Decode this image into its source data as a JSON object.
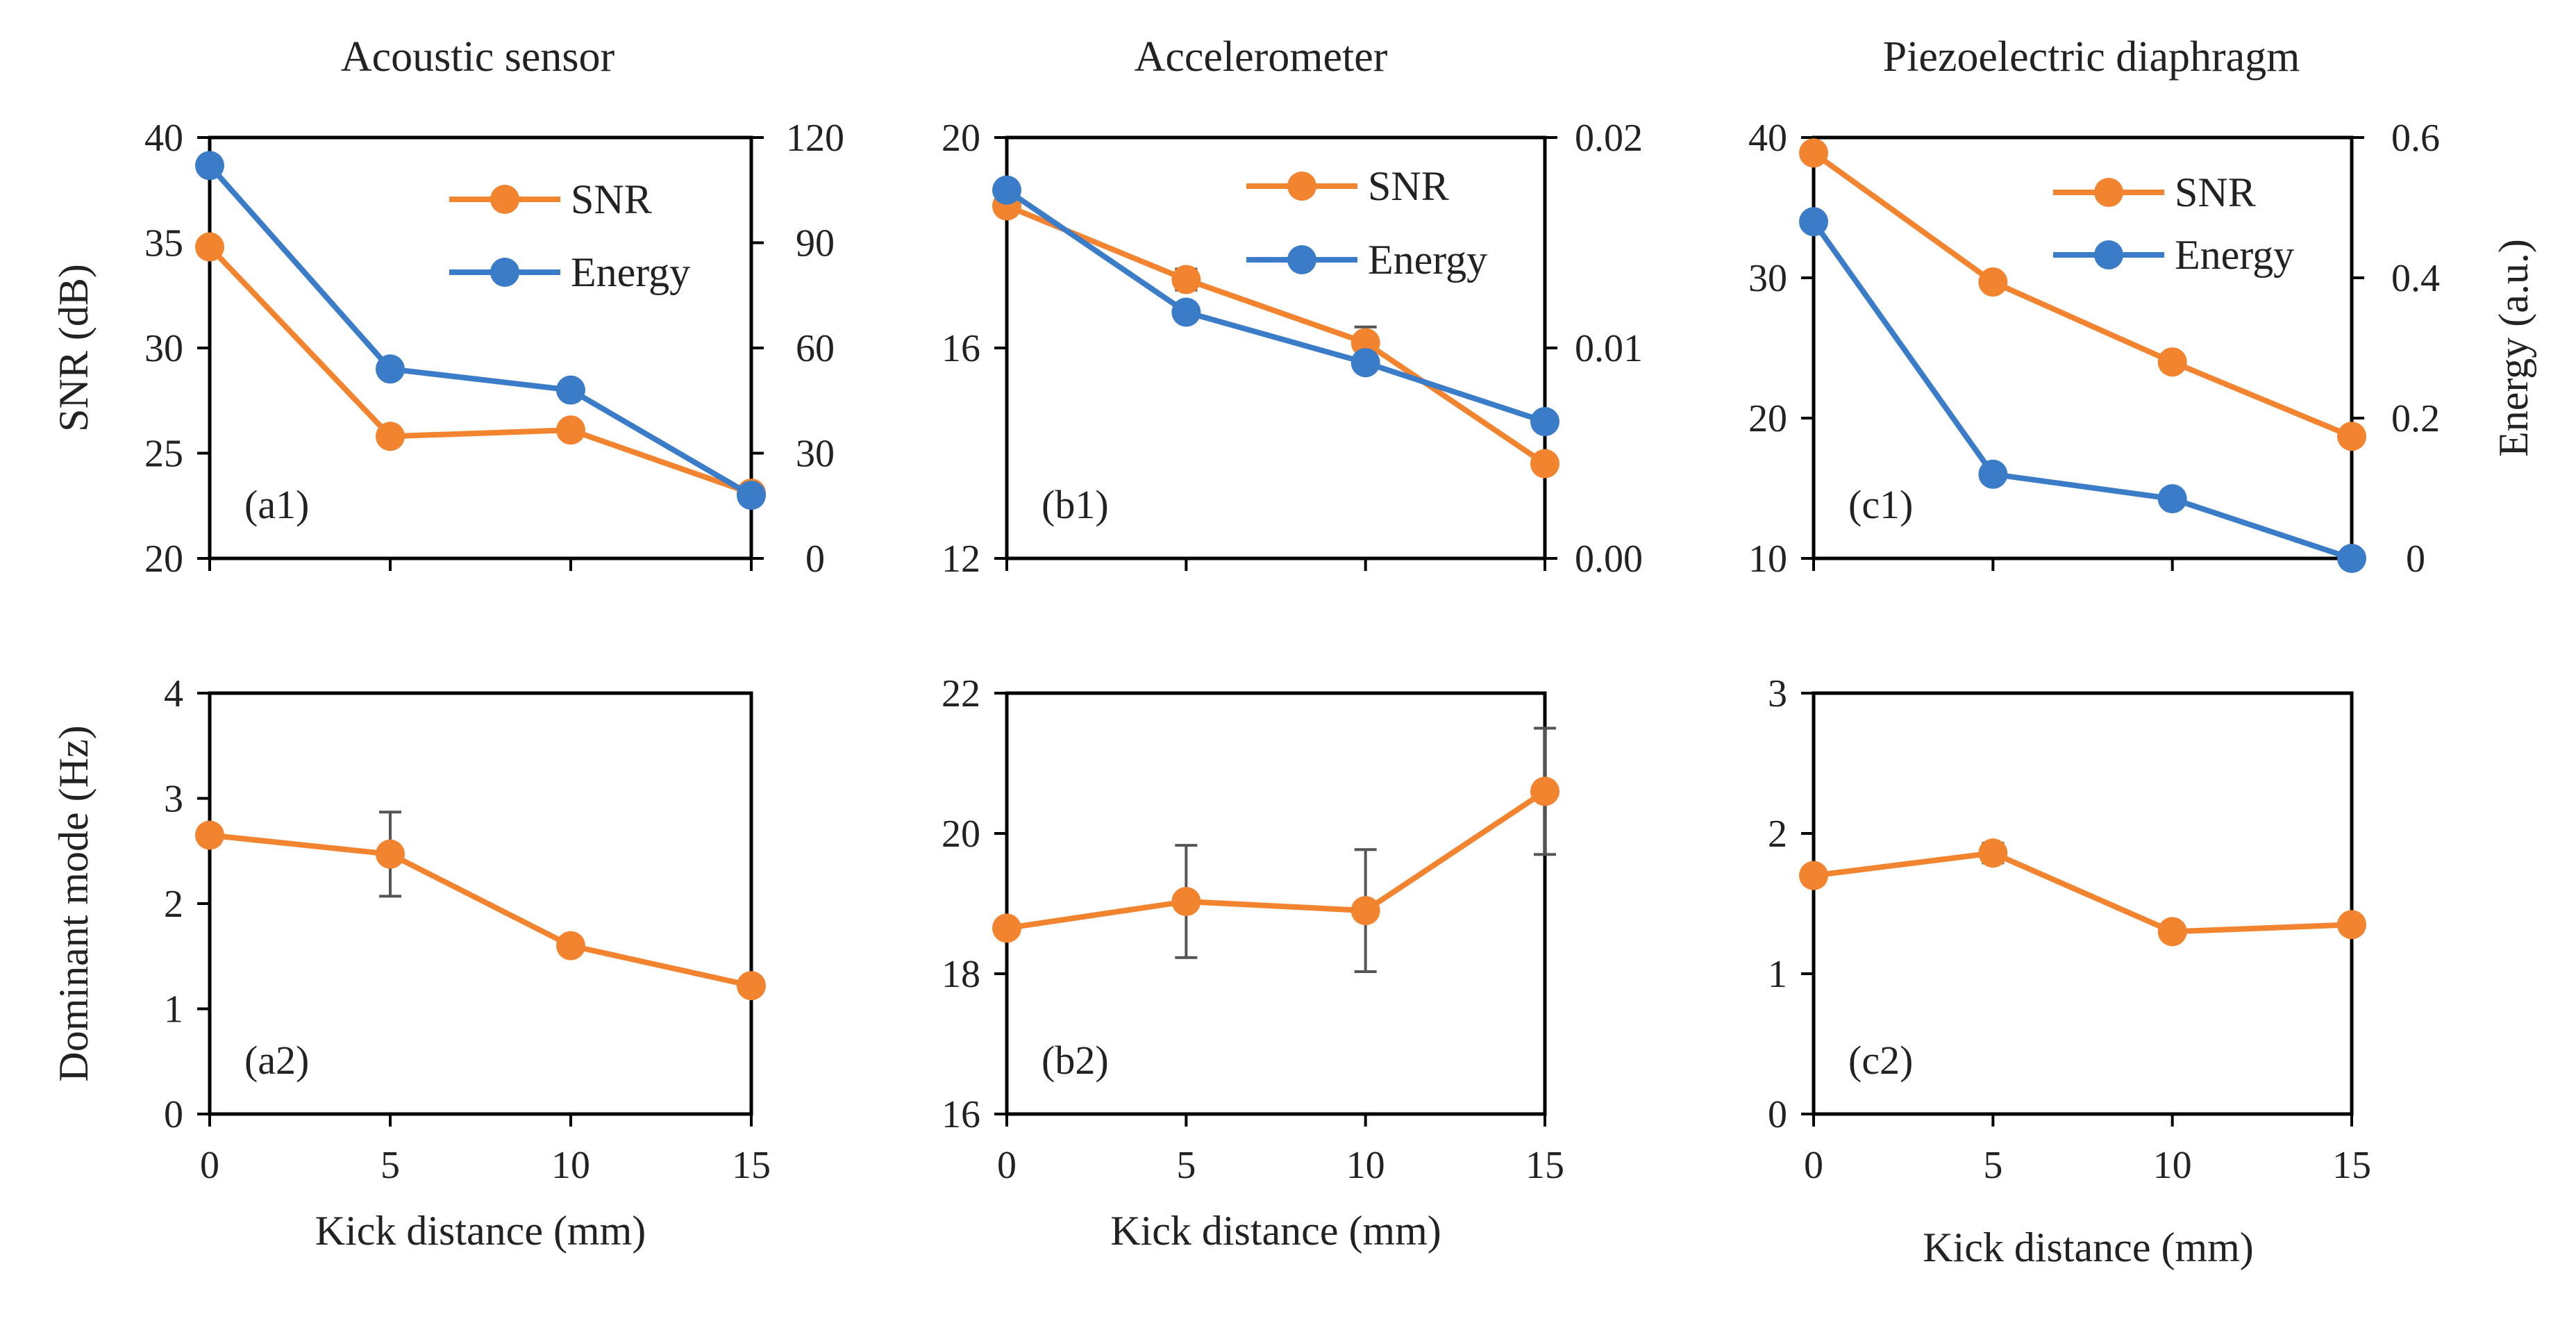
{
  "colors": {
    "snr": "#F28430",
    "energy": "#3A7CC8",
    "axis": "#000000",
    "errorbar": "#555555"
  },
  "column_titles": [
    "Acoustic sensor",
    "Accelerometer",
    "Piezoelectric diaphragm"
  ],
  "shared_labels": {
    "left_top": "SNR (dB)",
    "left_bottom": "Dominant  mode (Hz)",
    "right_top": "Energy  (a.u.)",
    "x_axis": "Kick distance (mm)"
  },
  "chart_data": [
    {
      "id": "a1",
      "type": "line",
      "panel_label": "(a1)",
      "x": [
        0,
        5,
        10,
        15
      ],
      "xticks": [
        "0",
        "5",
        "10",
        "15"
      ],
      "xlim": [
        0,
        15
      ],
      "ylim": [
        20,
        40
      ],
      "yticks": [
        "20",
        "25",
        "30",
        "35",
        "40"
      ],
      "ylabel": "SNR (dB)",
      "y2lim": [
        0,
        120
      ],
      "y2ticks": [
        "0",
        "30",
        "60",
        "90",
        "120"
      ],
      "legend": "top-right",
      "series": [
        {
          "name": "SNR",
          "axis": "left",
          "color": "#F28430",
          "values": [
            34.8,
            25.8,
            26.1,
            23.1
          ]
        },
        {
          "name": "Energy",
          "axis": "right",
          "color": "#3A7CC8",
          "values": [
            112,
            54,
            48,
            18
          ]
        }
      ]
    },
    {
      "id": "b1",
      "type": "line",
      "panel_label": "(b1)",
      "x": [
        0,
        5,
        10,
        15
      ],
      "xticks": [
        "0",
        "5",
        "10",
        "15"
      ],
      "xlim": [
        0,
        15
      ],
      "ylim": [
        12,
        20
      ],
      "yticks": [
        "12",
        "16",
        "20"
      ],
      "y2lim": [
        0,
        0.02
      ],
      "y2ticks": [
        "0.00",
        "0.01",
        "0.02"
      ],
      "legend": "top-right",
      "series": [
        {
          "name": "SNR",
          "axis": "left",
          "color": "#F28430",
          "values": [
            18.7,
            17.3,
            16.1,
            13.8
          ],
          "errors": [
            0,
            0.2,
            0.3,
            0
          ]
        },
        {
          "name": "Energy",
          "axis": "right",
          "color": "#3A7CC8",
          "values": [
            0.0175,
            0.0117,
            0.0093,
            0.0065
          ]
        }
      ]
    },
    {
      "id": "c1",
      "type": "line",
      "panel_label": "(c1)",
      "x": [
        0,
        5,
        10,
        15
      ],
      "xticks": [
        "0",
        "5",
        "10",
        "15"
      ],
      "xlim": [
        0,
        15
      ],
      "ylim": [
        10,
        40
      ],
      "yticks": [
        "10",
        "20",
        "30",
        "40"
      ],
      "y2lim": [
        0,
        0.6
      ],
      "y2ticks": [
        "0",
        "0.2",
        "0.4",
        "0.6"
      ],
      "y2label": "Energy  (a.u.)",
      "legend": "top-right",
      "series": [
        {
          "name": "SNR",
          "axis": "left",
          "color": "#F28430",
          "values": [
            38.9,
            29.7,
            24.0,
            18.7
          ]
        },
        {
          "name": "Energy",
          "axis": "right",
          "color": "#3A7CC8",
          "values": [
            0.48,
            0.12,
            0.085,
            0.0
          ]
        }
      ]
    },
    {
      "id": "a2",
      "type": "line",
      "panel_label": "(a2)",
      "x": [
        0,
        5,
        10,
        15
      ],
      "xticks": [
        "0",
        "5",
        "10",
        "15"
      ],
      "xlim": [
        0,
        15
      ],
      "ylim": [
        0,
        4
      ],
      "yticks": [
        "0",
        "1",
        "2",
        "3",
        "4"
      ],
      "ylabel": "Dominant  mode (Hz)",
      "xlabel": "Kick distance (mm)",
      "series": [
        {
          "name": "Dominant mode",
          "axis": "left",
          "color": "#F28430",
          "values": [
            2.65,
            2.47,
            1.6,
            1.22
          ],
          "errors": [
            0.08,
            0.4,
            0,
            0
          ]
        }
      ]
    },
    {
      "id": "b2",
      "type": "line",
      "panel_label": "(b2)",
      "x": [
        0,
        5,
        10,
        15
      ],
      "xticks": [
        "0",
        "5",
        "10",
        "15"
      ],
      "xlim": [
        0,
        15
      ],
      "ylim": [
        16,
        22
      ],
      "yticks": [
        "16",
        "18",
        "20",
        "22"
      ],
      "xlabel": "Kick distance (mm)",
      "series": [
        {
          "name": "Dominant mode",
          "axis": "left",
          "color": "#F28430",
          "values": [
            18.65,
            19.03,
            18.9,
            20.6
          ],
          "errors": [
            0,
            0.8,
            0.87,
            0.9
          ]
        }
      ]
    },
    {
      "id": "c2",
      "type": "line",
      "panel_label": "(c2)",
      "x": [
        0,
        5,
        10,
        15
      ],
      "xticks": [
        "0",
        "5",
        "10",
        "15"
      ],
      "xlim": [
        0,
        15
      ],
      "ylim": [
        0,
        3
      ],
      "yticks": [
        "0",
        "1",
        "2",
        "3"
      ],
      "xlabel": "Kick distance (mm)",
      "series": [
        {
          "name": "Dominant mode",
          "axis": "left",
          "color": "#F28430",
          "values": [
            1.7,
            1.86,
            1.3,
            1.35
          ],
          "errors": [
            0,
            0.07,
            0,
            0
          ]
        }
      ]
    }
  ]
}
